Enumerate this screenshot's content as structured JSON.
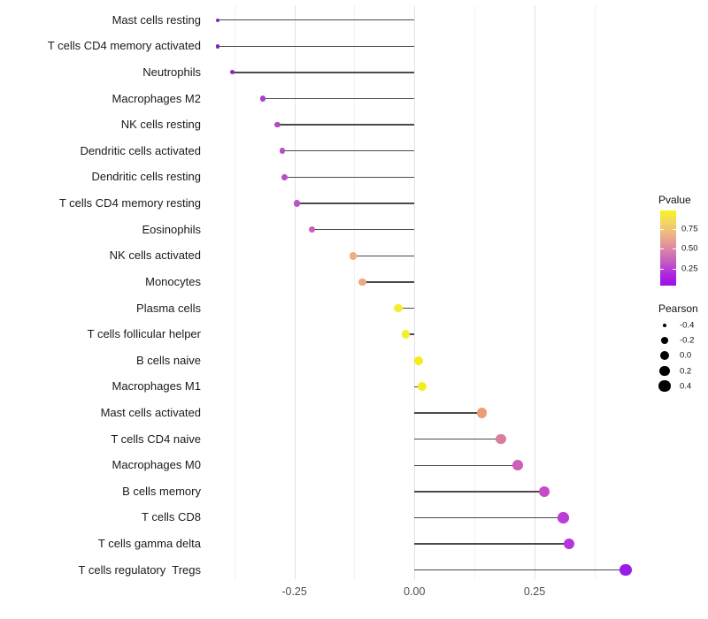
{
  "chart_data": {
    "type": "scatter",
    "subtype": "lollipop",
    "title": "",
    "xlabel": "",
    "ylabel": "",
    "xlim": [
      -0.426,
      0.535
    ],
    "grid": "vertical-only",
    "x_major_ticks": [
      {
        "label": "-0.25",
        "value": -0.25
      },
      {
        "label": "0.00",
        "value": 0.0
      },
      {
        "label": "0.25",
        "value": 0.25
      }
    ],
    "x_minor_gridlines": [
      -0.375,
      -0.125,
      0.125,
      0.375
    ],
    "baseline_value": 0.0,
    "points": [
      {
        "label": "Mast cells resting",
        "pearson": -0.41,
        "pvalue": 0.08,
        "color": "#8224be"
      },
      {
        "label": "T cells CD4 memory activated",
        "pearson": -0.41,
        "pvalue": 0.08,
        "color": "#8224be"
      },
      {
        "label": "Neutrophils",
        "pearson": -0.38,
        "pvalue": 0.12,
        "color": "#8f2bc5"
      },
      {
        "label": "Macrophages M2",
        "pearson": -0.315,
        "pvalue": 0.25,
        "color": "#a93fcb"
      },
      {
        "label": "NK cells resting",
        "pearson": -0.285,
        "pvalue": 0.3,
        "color": "#b249c6"
      },
      {
        "label": "Dendritic cells activated",
        "pearson": -0.275,
        "pvalue": 0.32,
        "color": "#b84fc6"
      },
      {
        "label": "Dendritic cells resting",
        "pearson": -0.27,
        "pvalue": 0.32,
        "color": "#b84fc6"
      },
      {
        "label": "T cells CD4 memory resting",
        "pearson": -0.245,
        "pvalue": 0.35,
        "color": "#bc53c4"
      },
      {
        "label": "Eosinophils",
        "pearson": -0.213,
        "pvalue": 0.42,
        "color": "#c75fbe"
      },
      {
        "label": "NK cells activated",
        "pearson": -0.128,
        "pvalue": 0.62,
        "color": "#efad85"
      },
      {
        "label": "Monocytes",
        "pearson": -0.109,
        "pvalue": 0.6,
        "color": "#eda981"
      },
      {
        "label": "Plasma cells",
        "pearson": -0.034,
        "pvalue": 0.88,
        "color": "#f5ee2c"
      },
      {
        "label": "T cells follicular helper",
        "pearson": -0.018,
        "pvalue": 0.88,
        "color": "#f5ee2c"
      },
      {
        "label": "B cells naive",
        "pearson": 0.008,
        "pvalue": 0.92,
        "color": "#f4ec1e"
      },
      {
        "label": "Macrophages M1",
        "pearson": 0.016,
        "pvalue": 0.92,
        "color": "#f4ec1e"
      },
      {
        "label": "Mast cells activated",
        "pearson": 0.14,
        "pvalue": 0.58,
        "color": "#ec9c76"
      },
      {
        "label": "T cells CD4 naive",
        "pearson": 0.18,
        "pvalue": 0.48,
        "color": "#d97e9d"
      },
      {
        "label": "Macrophages M0",
        "pearson": 0.215,
        "pvalue": 0.4,
        "color": "#cc5fba"
      },
      {
        "label": "B cells memory",
        "pearson": 0.27,
        "pvalue": 0.35,
        "color": "#c64bc8"
      },
      {
        "label": "T cells CD8",
        "pearson": 0.31,
        "pvalue": 0.28,
        "color": "#bb3bd4"
      },
      {
        "label": "T cells gamma delta",
        "pearson": 0.322,
        "pvalue": 0.27,
        "color": "#b637d8"
      },
      {
        "label": "T cells regulatory  Tregs",
        "pearson": 0.44,
        "pvalue": 0.05,
        "color": "#9b1be8"
      }
    ],
    "legend": {
      "pvalue": {
        "title": "Pvalue",
        "ticks": [
          {
            "label": "0.75",
            "value": 0.75
          },
          {
            "label": "0.50",
            "value": 0.5
          },
          {
            "label": "0.25",
            "value": 0.25
          }
        ],
        "bar_range": [
          0.03,
          0.99
        ],
        "gradient_top_to_bottom": [
          "#f9f320",
          "#f3da5c",
          "#eebc7e",
          "#e59a96",
          "#d478af",
          "#c252c6",
          "#ac27de",
          "#9e0fe8"
        ]
      },
      "pearson": {
        "title": "Pearson",
        "sizes": [
          {
            "label": "-0.4",
            "value": -0.4
          },
          {
            "label": "-0.2",
            "value": -0.2
          },
          {
            "label": "0.0",
            "value": 0.0
          },
          {
            "label": "0.2",
            "value": 0.2
          },
          {
            "label": "0.4",
            "value": 0.4
          }
        ],
        "dot_color": "#000000"
      }
    }
  }
}
